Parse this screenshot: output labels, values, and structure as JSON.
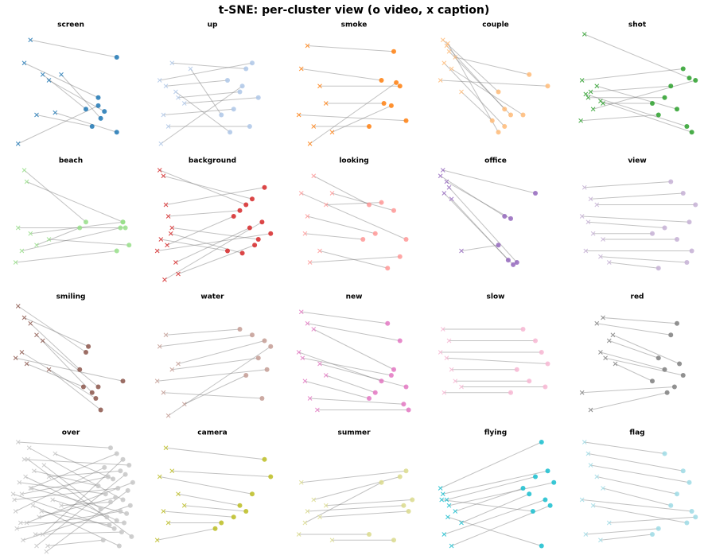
{
  "title": "t-SNE: per-cluster view (o video, x caption)",
  "chart_data": [
    {
      "type": "scatter",
      "title": "screen",
      "color": "#1f77b4",
      "xlim": [
        0,
        100
      ],
      "ylim": [
        0,
        100
      ],
      "video": {
        "x": [
          85,
          70,
          60,
          75,
          72,
          65,
          85,
          70
        ],
        "y": [
          80,
          45,
          35,
          33,
          27,
          20,
          15,
          38
        ]
      },
      "caption": {
        "x": [
          15,
          10,
          25,
          30,
          40,
          20,
          35,
          5
        ],
        "y": [
          95,
          75,
          65,
          60,
          65,
          30,
          32,
          5
        ]
      }
    },
    {
      "type": "scatter",
      "title": "up",
      "color": "#aec7e8",
      "xlim": [
        0,
        100
      ],
      "ylim": [
        0,
        100
      ],
      "video": {
        "x": [
          80,
          75,
          60,
          70,
          85,
          65,
          55,
          78,
          62,
          72
        ],
        "y": [
          75,
          70,
          60,
          50,
          45,
          35,
          30,
          20,
          15,
          55
        ]
      },
      "caption": {
        "x": [
          5,
          15,
          10,
          20,
          25,
          8,
          30,
          12,
          18,
          6
        ],
        "y": [
          60,
          75,
          55,
          45,
          40,
          30,
          70,
          20,
          50,
          5
        ]
      }
    },
    {
      "type": "scatter",
      "title": "smoke",
      "color": "#ff7f0e",
      "xlim": [
        0,
        100
      ],
      "ylim": [
        0,
        100
      ],
      "video": {
        "x": [
          80,
          70,
          85,
          72,
          90,
          60,
          78,
          82
        ],
        "y": [
          85,
          60,
          55,
          40,
          25,
          20,
          38,
          58
        ]
      },
      "caption": {
        "x": [
          10,
          5,
          20,
          25,
          3,
          15,
          30,
          12
        ],
        "y": [
          90,
          70,
          55,
          40,
          30,
          20,
          15,
          5
        ]
      }
    },
    {
      "type": "scatter",
      "title": "couple",
      "color": "#ffbb78",
      "xlim": [
        0,
        100
      ],
      "ylim": [
        0,
        100
      ],
      "video": {
        "x": [
          50,
          55,
          60,
          75,
          90,
          70,
          45,
          55,
          50
        ],
        "y": [
          50,
          35,
          30,
          65,
          55,
          30,
          25,
          20,
          15
        ]
      },
      "caption": {
        "x": [
          5,
          8,
          10,
          15,
          3,
          12,
          20,
          6,
          9
        ],
        "y": [
          95,
          90,
          85,
          80,
          60,
          70,
          50,
          75,
          92
        ]
      }
    },
    {
      "type": "scatter",
      "title": "shot",
      "color": "#2ca02c",
      "xlim": [
        0,
        100
      ],
      "ylim": [
        0,
        100
      ],
      "video": {
        "x": [
          90,
          85,
          75,
          70,
          80,
          60,
          95,
          65,
          88,
          92
        ],
        "y": [
          62,
          70,
          55,
          45,
          35,
          40,
          60,
          30,
          20,
          15
        ]
      },
      "caption": {
        "x": [
          5,
          3,
          10,
          8,
          15,
          20,
          12,
          2,
          6,
          18
        ],
        "y": [
          100,
          60,
          50,
          45,
          55,
          40,
          35,
          25,
          48,
          42
        ]
      }
    },
    {
      "type": "scatter",
      "title": "beach",
      "color": "#98df8a",
      "xlim": [
        0,
        100
      ],
      "ylim": [
        0,
        100
      ],
      "video": {
        "x": [
          60,
          90,
          92,
          88,
          85,
          95,
          55,
          90
        ],
        "y": [
          55,
          55,
          50,
          50,
          30,
          35,
          50,
          55
        ]
      },
      "caption": {
        "x": [
          10,
          12,
          5,
          8,
          3,
          30,
          20,
          15
        ],
        "y": [
          100,
          90,
          50,
          30,
          20,
          40,
          35,
          45
        ]
      }
    },
    {
      "type": "scatter",
      "title": "background",
      "color": "#d62728",
      "xlim": [
        0,
        100
      ],
      "ylim": [
        0,
        100
      ],
      "video": {
        "x": [
          75,
          80,
          90,
          70,
          85,
          60,
          95,
          78,
          82,
          88,
          72,
          65
        ],
        "y": [
          70,
          75,
          85,
          65,
          40,
          30,
          45,
          50,
          35,
          55,
          28,
          60
        ]
      },
      "caption": {
        "x": [
          5,
          8,
          10,
          12,
          15,
          6,
          3,
          18,
          20,
          9,
          14,
          11
        ],
        "y": [
          100,
          95,
          70,
          60,
          50,
          40,
          30,
          20,
          10,
          5,
          45,
          35
        ]
      }
    },
    {
      "type": "scatter",
      "title": "looking",
      "color": "#ff9896",
      "xlim": [
        0,
        100
      ],
      "ylim": [
        0,
        100
      ],
      "video": {
        "x": [
          60,
          70,
          80,
          90,
          65,
          55,
          75,
          85
        ],
        "y": [
          70,
          72,
          65,
          40,
          45,
          40,
          15,
          25
        ]
      },
      "caption": {
        "x": [
          15,
          25,
          30,
          5,
          10,
          8,
          20,
          12
        ],
        "y": [
          95,
          70,
          80,
          80,
          60,
          45,
          30,
          20
        ]
      }
    },
    {
      "type": "scatter",
      "title": "office",
      "color": "#9467bd",
      "xlim": [
        0,
        100
      ],
      "ylim": [
        0,
        100
      ],
      "video": {
        "x": [
          80,
          55,
          60,
          65,
          62,
          58,
          50
        ],
        "y": [
          80,
          60,
          58,
          20,
          18,
          22,
          35
        ]
      },
      "caption": {
        "x": [
          5,
          3,
          8,
          10,
          6,
          12,
          20
        ],
        "y": [
          100,
          95,
          90,
          85,
          80,
          75,
          30
        ]
      }
    },
    {
      "type": "scatter",
      "title": "view",
      "color": "#c5b0d5",
      "xlim": [
        0,
        100
      ],
      "ylim": [
        0,
        100
      ],
      "video": {
        "x": [
          75,
          85,
          95,
          90,
          70,
          60,
          80,
          92,
          88,
          65
        ],
        "y": [
          90,
          80,
          70,
          55,
          50,
          45,
          40,
          30,
          20,
          15
        ]
      },
      "caption": {
        "x": [
          5,
          10,
          15,
          3,
          8,
          12,
          20,
          6,
          18,
          25
        ],
        "y": [
          85,
          75,
          70,
          60,
          55,
          45,
          40,
          30,
          25,
          20
        ]
      }
    },
    {
      "type": "scatter",
      "title": "smiling",
      "color": "#8c564b",
      "xlim": [
        0,
        100
      ],
      "ylim": [
        0,
        100
      ],
      "video": {
        "x": [
          60,
          62,
          55,
          65,
          70,
          68,
          58,
          72,
          90
        ],
        "y": [
          60,
          65,
          45,
          25,
          30,
          20,
          30,
          10,
          35
        ]
      },
      "caption": {
        "x": [
          5,
          10,
          15,
          20,
          25,
          8,
          12,
          30,
          3
        ],
        "y": [
          100,
          90,
          85,
          75,
          70,
          60,
          50,
          45,
          55
        ]
      }
    },
    {
      "type": "scatter",
      "title": "water",
      "color": "#c49c94",
      "xlim": [
        0,
        100
      ],
      "ylim": [
        0,
        100
      ],
      "video": {
        "x": [
          70,
          80,
          90,
          85,
          92,
          88,
          75,
          95
        ],
        "y": [
          80,
          75,
          70,
          55,
          45,
          20,
          40,
          65
        ]
      },
      "caption": {
        "x": [
          10,
          5,
          20,
          15,
          3,
          8,
          25,
          12
        ],
        "y": [
          75,
          65,
          50,
          45,
          35,
          25,
          15,
          5
        ]
      }
    },
    {
      "type": "scatter",
      "title": "new",
      "color": "#e377c2",
      "xlim": [
        0,
        100
      ],
      "ylim": [
        0,
        100
      ],
      "video": {
        "x": [
          75,
          85,
          80,
          70,
          90,
          65,
          60,
          88,
          92,
          78
        ],
        "y": [
          85,
          70,
          45,
          35,
          30,
          25,
          20,
          15,
          10,
          40
        ]
      },
      "caption": {
        "x": [
          5,
          10,
          15,
          3,
          20,
          25,
          8,
          12,
          18,
          6
        ],
        "y": [
          95,
          85,
          80,
          60,
          50,
          40,
          35,
          20,
          10,
          55
        ]
      }
    },
    {
      "type": "scatter",
      "title": "slow",
      "color": "#f7b6d2",
      "xlim": [
        0,
        100
      ],
      "ylim": [
        0,
        100
      ],
      "video": {
        "x": [
          70,
          80,
          85,
          90,
          65,
          75,
          88,
          60
        ],
        "y": [
          80,
          70,
          60,
          50,
          45,
          35,
          30,
          25
        ]
      },
      "caption": {
        "x": [
          5,
          10,
          3,
          8,
          12,
          15,
          20,
          6
        ],
        "y": [
          80,
          70,
          60,
          55,
          45,
          35,
          30,
          25
        ]
      }
    },
    {
      "type": "scatter",
      "title": "red",
      "color": "#7f7f7f",
      "xlim": [
        0,
        100
      ],
      "ylim": [
        0,
        100
      ],
      "video": {
        "x": [
          80,
          75,
          65,
          70,
          85,
          60,
          78,
          72,
          82
        ],
        "y": [
          85,
          75,
          55,
          45,
          40,
          35,
          30,
          25,
          50
        ]
      },
      "caption": {
        "x": [
          20,
          15,
          25,
          18,
          22,
          30,
          3,
          10,
          28
        ],
        "y": [
          90,
          85,
          70,
          60,
          55,
          50,
          25,
          10,
          75
        ]
      }
    },
    {
      "type": "scatter",
      "title": "over",
      "color": "#c7c7c7",
      "xlim": [
        0,
        100
      ],
      "ylim": [
        0,
        100
      ],
      "video": {
        "x": [
          80,
          85,
          90,
          95,
          75,
          88,
          92,
          78,
          82,
          98,
          70,
          86,
          94,
          76,
          84,
          90,
          80,
          96,
          72,
          88,
          93,
          77,
          85,
          91,
          79,
          83,
          89,
          97,
          74,
          87
        ],
        "y": [
          95,
          90,
          85,
          80,
          78,
          75,
          72,
          70,
          68,
          65,
          62,
          60,
          58,
          55,
          52,
          50,
          48,
          45,
          42,
          40,
          38,
          35,
          32,
          30,
          28,
          25,
          22,
          18,
          15,
          10
        ]
      },
      "caption": {
        "x": [
          5,
          15,
          25,
          10,
          3,
          30,
          20,
          8,
          35,
          12,
          18,
          2,
          28,
          6,
          22,
          14,
          40,
          9,
          26,
          4,
          16,
          33,
          11,
          7,
          24,
          1,
          19,
          13,
          29,
          17
        ],
        "y": [
          100,
          60,
          20,
          85,
          40,
          70,
          10,
          55,
          90,
          30,
          75,
          50,
          5,
          65,
          35,
          95,
          45,
          15,
          80,
          25,
          60,
          50,
          70,
          30,
          40,
          55,
          20,
          85,
          10,
          45
        ]
      }
    },
    {
      "type": "scatter",
      "title": "camera",
      "color": "#bcbd22",
      "xlim": [
        0,
        100
      ],
      "ylim": [
        0,
        100
      ],
      "video": {
        "x": [
          90,
          95,
          80,
          70,
          75,
          65,
          55,
          50
        ],
        "y": [
          85,
          70,
          55,
          45,
          40,
          35,
          30,
          25
        ]
      },
      "caption": {
        "x": [
          10,
          15,
          5,
          20,
          25,
          8,
          12,
          3
        ],
        "y": [
          95,
          75,
          70,
          55,
          45,
          40,
          30,
          15
        ]
      }
    },
    {
      "type": "scatter",
      "title": "summer",
      "color": "#dbdb8d",
      "xlim": [
        0,
        100
      ],
      "ylim": [
        0,
        100
      ],
      "video": {
        "x": [
          90,
          85,
          95,
          88,
          92,
          60,
          80,
          70
        ],
        "y": [
          75,
          70,
          50,
          45,
          40,
          20,
          15,
          65
        ]
      },
      "caption": {
        "x": [
          5,
          15,
          25,
          10,
          20,
          3,
          30,
          8
        ],
        "y": [
          65,
          50,
          45,
          40,
          35,
          20,
          15,
          30
        ]
      }
    },
    {
      "type": "scatter",
      "title": "flying",
      "color": "#17becf",
      "xlim": [
        0,
        100
      ],
      "ylim": [
        0,
        100
      ],
      "video": {
        "x": [
          85,
          90,
          80,
          95,
          70,
          75,
          88,
          92,
          78,
          85
        ],
        "y": [
          100,
          75,
          70,
          65,
          60,
          55,
          50,
          45,
          40,
          10
        ]
      },
      "caption": {
        "x": [
          3,
          5,
          8,
          10,
          15,
          20,
          6,
          12,
          4,
          9
        ],
        "y": [
          60,
          55,
          50,
          45,
          40,
          30,
          20,
          10,
          50,
          35
        ]
      }
    },
    {
      "type": "scatter",
      "title": "flag",
      "color": "#9edae5",
      "xlim": [
        0,
        100
      ],
      "ylim": [
        0,
        100
      ],
      "video": {
        "x": [
          70,
          85,
          90,
          80,
          75,
          92,
          88,
          65,
          60,
          95
        ],
        "y": [
          90,
          75,
          65,
          55,
          45,
          40,
          30,
          25,
          20,
          35
        ]
      },
      "caption": {
        "x": [
          5,
          8,
          10,
          15,
          20,
          3,
          12,
          6,
          18,
          25
        ],
        "y": [
          100,
          90,
          80,
          70,
          60,
          50,
          45,
          20,
          15,
          30
        ]
      }
    }
  ]
}
